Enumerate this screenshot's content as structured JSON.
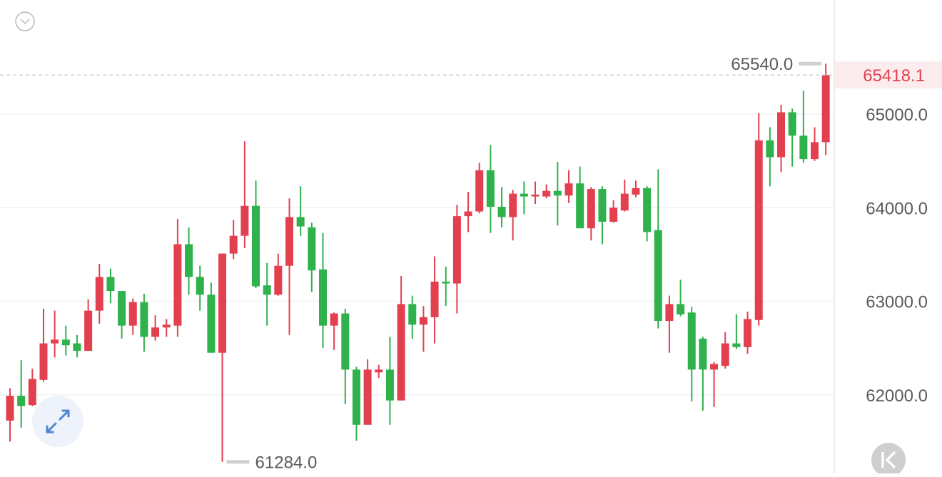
{
  "chart_data": {
    "type": "candlestick",
    "up_color": "#e2404f",
    "down_color": "#2fb14b",
    "ylim": [
      61160,
      66220
    ],
    "yticks": [
      {
        "value": 62000,
        "label": "62000.0"
      },
      {
        "value": 63000,
        "label": "63000.0"
      },
      {
        "value": 64000,
        "label": "64000.0"
      },
      {
        "value": 65000,
        "label": "65000.0"
      }
    ],
    "grid": true,
    "max_label": {
      "value": 65540,
      "label": "65540.0"
    },
    "min_label": {
      "value": 61284,
      "label": "61284.0"
    },
    "last_price": {
      "value": 65418.1,
      "label": "65418.1"
    },
    "open": [
      61725,
      61990,
      61890,
      62160,
      62550,
      62590,
      62550,
      62470,
      62900,
      63260,
      63110,
      62740,
      62990,
      62620,
      62720,
      62740,
      63610,
      63260,
      63070,
      62450,
      63510,
      63700,
      64020,
      63170,
      63070,
      63380,
      63900,
      63790,
      63340,
      62740,
      62870,
      62270,
      61680,
      62240,
      62270,
      61940,
      62970,
      62750,
      62830,
      63210,
      63190,
      63910,
      63960,
      64400,
      64010,
      63900,
      64150,
      64120,
      64120,
      64180,
      64130,
      64260,
      63780,
      64200,
      63850,
      63970,
      64140,
      64210,
      63760,
      62790,
      62970,
      62880,
      62600,
      62270,
      62310,
      62550,
      62510,
      62800,
      64720,
      64540,
      65020,
      64770,
      64520,
      64700
    ],
    "high": [
      62070,
      62370,
      62280,
      62920,
      62900,
      62740,
      62640,
      63020,
      63400,
      63350,
      63110,
      63030,
      63080,
      62850,
      62810,
      63880,
      63790,
      63380,
      63200,
      63510,
      63870,
      64710,
      64290,
      63410,
      63510,
      64100,
      64230,
      63840,
      63730,
      62880,
      62920,
      62300,
      62380,
      62320,
      62620,
      63270,
      63060,
      62950,
      63480,
      63370,
      64030,
      64170,
      64480,
      64670,
      64220,
      64190,
      64280,
      64280,
      64250,
      64490,
      64400,
      64440,
      64220,
      64230,
      64080,
      64300,
      64290,
      64230,
      64410,
      63060,
      63230,
      62940,
      62620,
      62350,
      62670,
      62860,
      62890,
      65010,
      64860,
      65100,
      65060,
      65250,
      64860,
      65540
    ],
    "low": [
      61500,
      61650,
      61880,
      62140,
      62400,
      62420,
      62400,
      62470,
      62760,
      62980,
      62600,
      62640,
      62460,
      62580,
      62620,
      62620,
      63070,
      62900,
      62450,
      61284,
      63450,
      63570,
      63140,
      62740,
      63060,
      62640,
      63700,
      63100,
      62500,
      62480,
      61900,
      61510,
      61680,
      62180,
      61680,
      61940,
      62600,
      62460,
      62550,
      62950,
      62870,
      63740,
      63940,
      63730,
      63790,
      63650,
      63930,
      64040,
      64100,
      63810,
      64050,
      63780,
      63650,
      63610,
      63840,
      63960,
      64110,
      63640,
      62710,
      62450,
      62840,
      61930,
      61830,
      61870,
      62280,
      62490,
      62440,
      62740,
      64230,
      64380,
      64440,
      64480,
      64500,
      64560
    ],
    "close": [
      61990,
      61880,
      62170,
      62550,
      62590,
      62530,
      62470,
      62900,
      63260,
      63110,
      62740,
      62990,
      62620,
      62720,
      62750,
      63610,
      63260,
      63070,
      62450,
      63510,
      63700,
      64020,
      63160,
      63070,
      63380,
      63900,
      63800,
      63330,
      62740,
      62870,
      62270,
      61680,
      62270,
      62270,
      61940,
      62970,
      62750,
      62830,
      63210,
      63190,
      63910,
      63960,
      64400,
      64010,
      63900,
      64150,
      64120,
      64140,
      64180,
      64130,
      64260,
      63780,
      64200,
      63850,
      64000,
      64150,
      64210,
      63740,
      62790,
      62970,
      62860,
      62270,
      62270,
      62330,
      62550,
      62510,
      62810,
      64720,
      64540,
      65020,
      64770,
      64520,
      64700,
      65418.1
    ]
  }
}
